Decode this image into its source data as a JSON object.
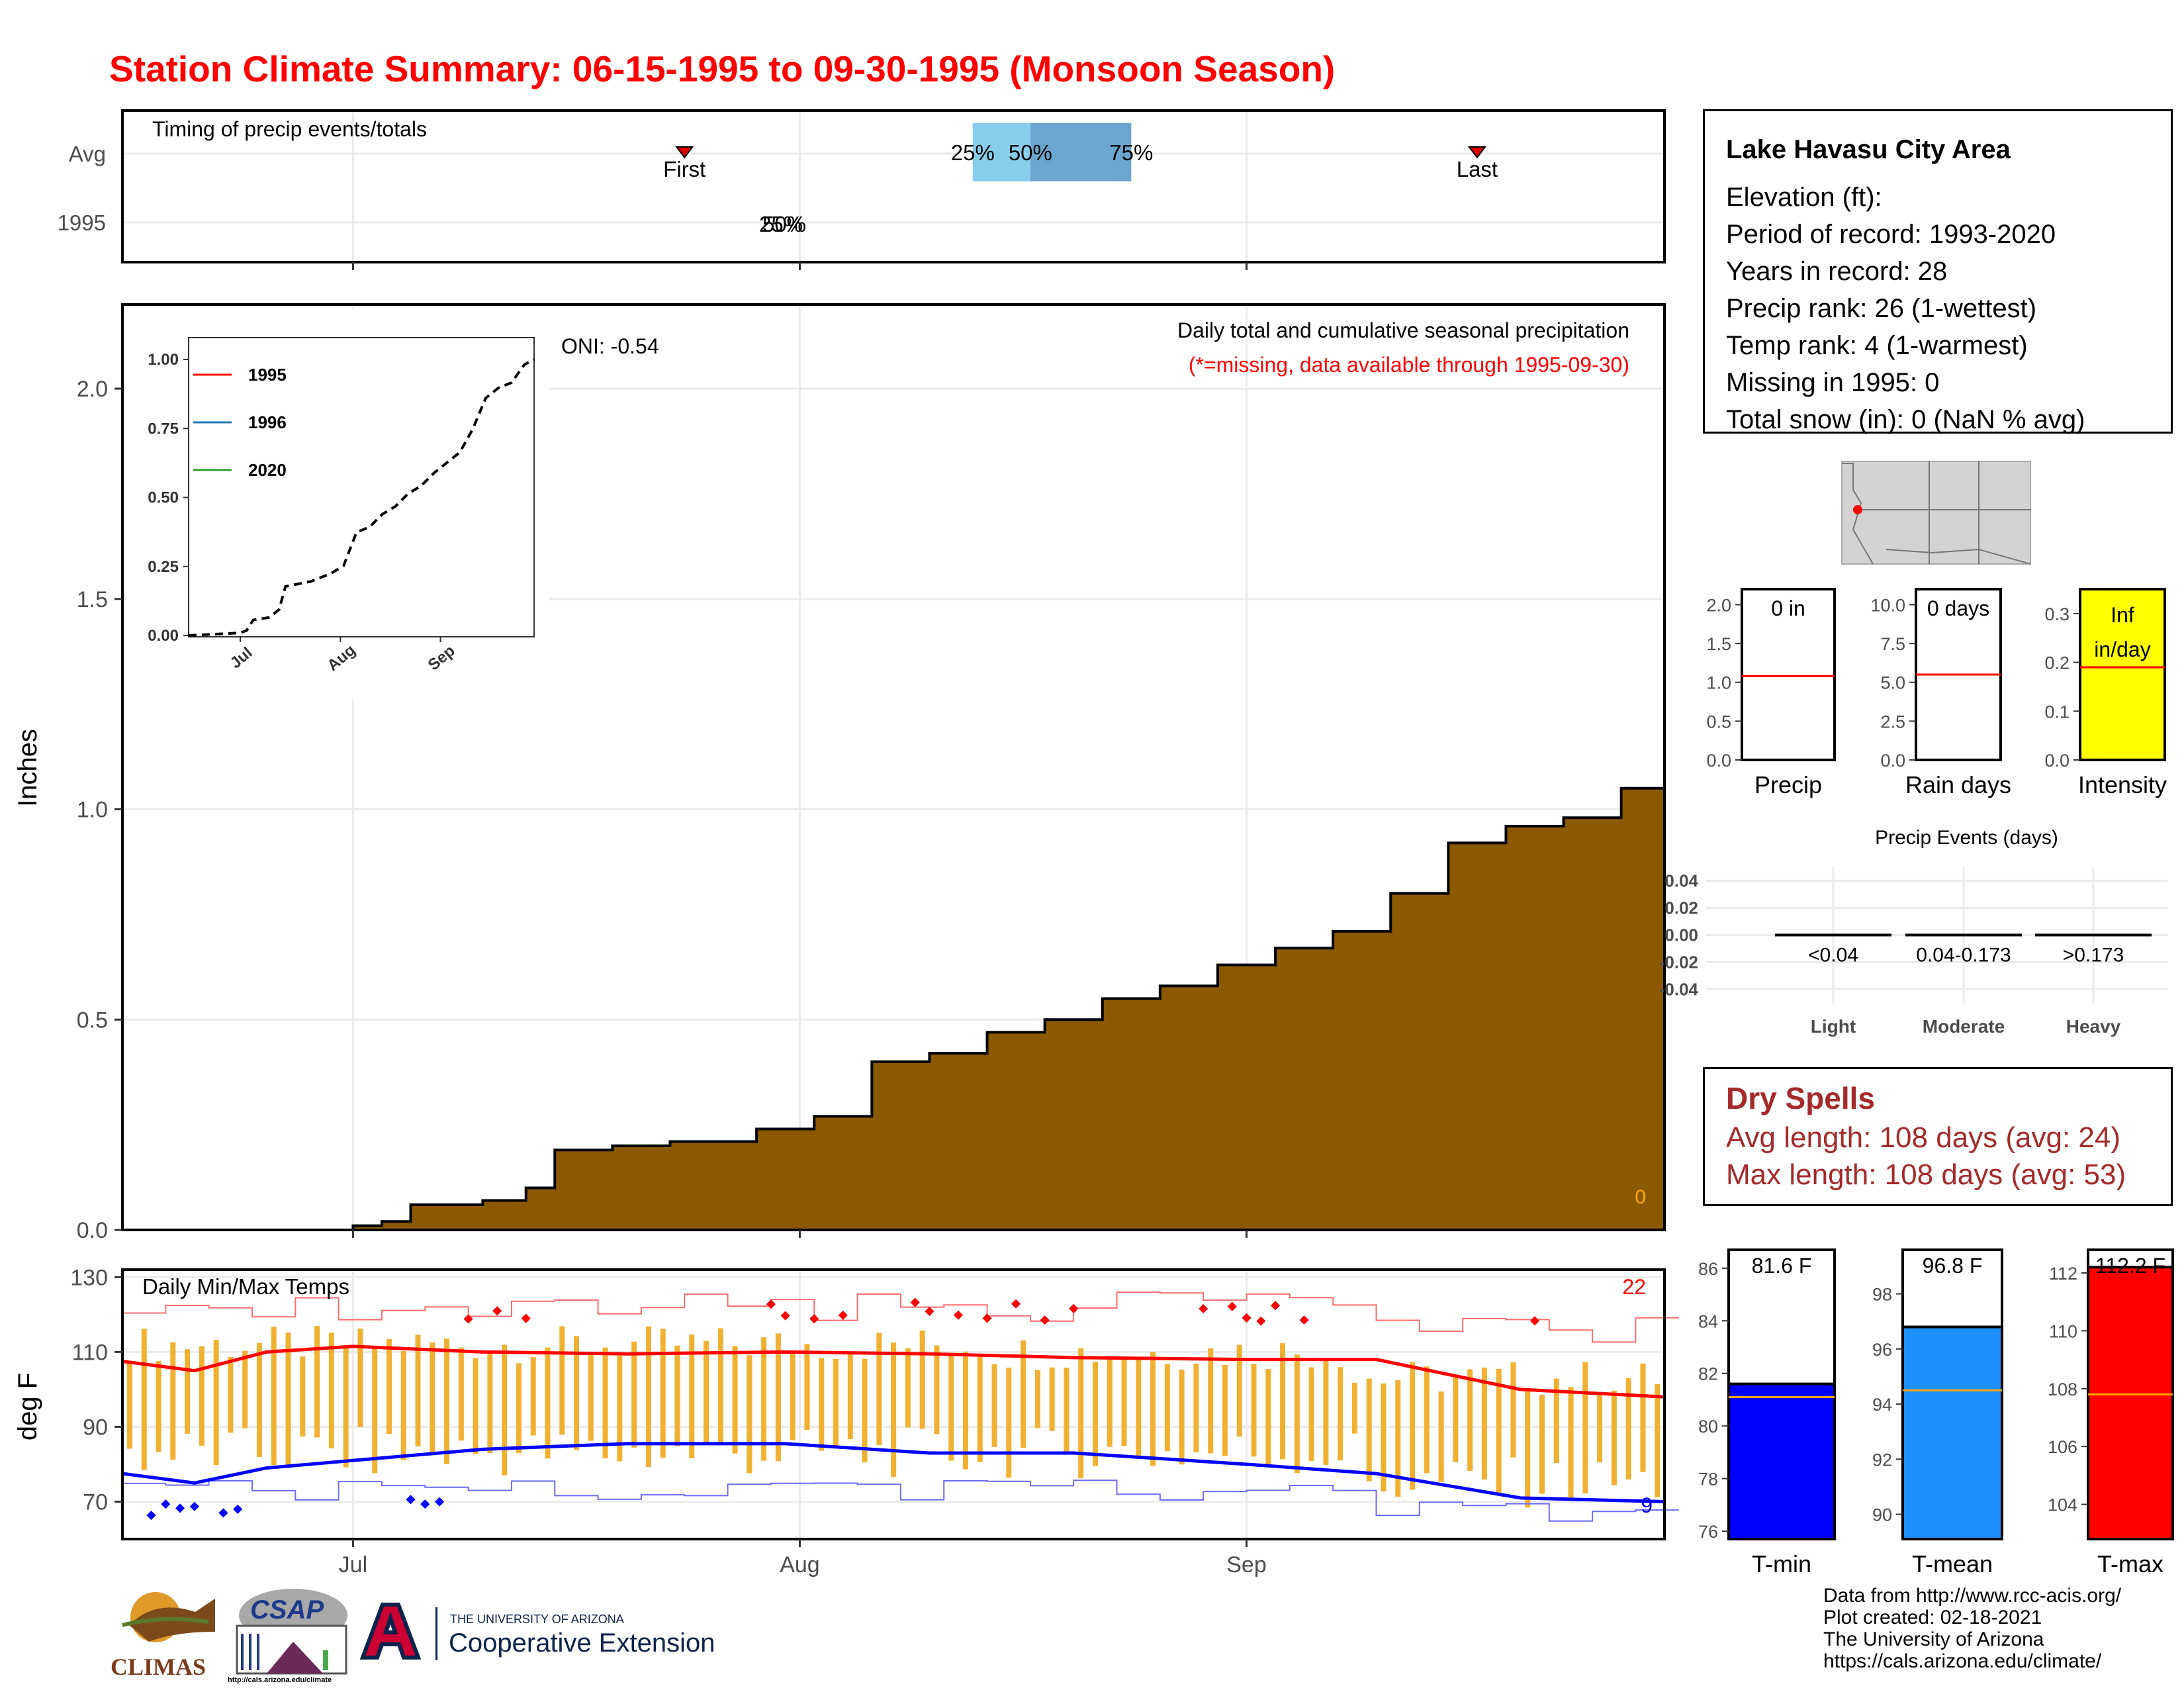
{
  "title": "Station Climate Summary: 06-15-1995 to 09-30-1995 (Monsoon Season)",
  "colors": {
    "title": "#ff0000",
    "precip_fill": "#8b5a00",
    "temp_bar": "#f0b132",
    "avg_max": "#ff0000",
    "avg_min": "#0000ff",
    "dry_spell": "#a52a2a",
    "q1": "#87ceeb",
    "q2": "#6aa6cd"
  },
  "timing": {
    "title": "Timing of precip events/totals",
    "row_labels": [
      "Avg",
      "1995"
    ],
    "first_label": "First",
    "last_label": "Last",
    "quartile_labels": [
      "25%",
      "50%",
      "75%"
    ],
    "year_overlap_labels": [
      "50%",
      "25%"
    ],
    "first_date": "1995-07-24",
    "last_date": "1995-09-17",
    "q25_date": "1995-08-13",
    "q50_date": "1995-08-17",
    "q75_date": "1995-08-24"
  },
  "precip_panel": {
    "ylabel": "Inches",
    "annot_title": "Daily total and cumulative seasonal precipitation",
    "annot_missing": "(*=missing, data available through 1995-09-30)",
    "oni": "ONI: -0.54",
    "corner_count": "0",
    "yticks": [
      "0.0",
      "0.5",
      "1.0",
      "1.5",
      "2.0"
    ]
  },
  "inset": {
    "legend": [
      {
        "name": "1995",
        "color": "#ff0000"
      },
      {
        "name": "1996",
        "color": "#1f77b4"
      },
      {
        "name": "2020",
        "color": "#2ca02c"
      }
    ],
    "yticks": [
      "0.00",
      "0.25",
      "0.50",
      "0.75",
      "1.00"
    ],
    "xticks": [
      "Jul",
      "Aug",
      "Sep"
    ]
  },
  "temp_panel": {
    "title": "Daily Min/Max Temps",
    "ylabel": "deg F",
    "max_count": "22",
    "min_count": "9",
    "yticks": [
      "70",
      "90",
      "110",
      "130"
    ],
    "xticks": [
      "Jul",
      "Aug",
      "Sep"
    ]
  },
  "chart_data": [
    {
      "type": "area",
      "title": "Daily total and cumulative seasonal precipitation",
      "ylabel": "Inches",
      "xlim": [
        "1995-06-15",
        "1995-09-30"
      ],
      "ylim": [
        0,
        2.2
      ],
      "x": [
        "1995-06-15",
        "1995-07-01",
        "1995-07-03",
        "1995-07-05",
        "1995-07-10",
        "1995-07-13",
        "1995-07-15",
        "1995-07-19",
        "1995-07-23",
        "1995-07-29",
        "1995-08-02",
        "1995-08-06",
        "1995-08-10",
        "1995-08-14",
        "1995-08-18",
        "1995-08-22",
        "1995-08-26",
        "1995-08-30",
        "1995-09-03",
        "1995-09-07",
        "1995-09-11",
        "1995-09-15",
        "1995-09-19",
        "1995-09-23",
        "1995-09-27",
        "1995-09-30"
      ],
      "y": [
        0.0,
        0.01,
        0.02,
        0.06,
        0.07,
        0.1,
        0.19,
        0.2,
        0.21,
        0.24,
        0.27,
        0.4,
        0.42,
        0.47,
        0.5,
        0.55,
        0.58,
        0.63,
        0.67,
        0.71,
        0.8,
        0.92,
        0.96,
        0.98,
        1.05,
        1.07
      ]
    },
    {
      "type": "line",
      "title": "Daily Min/Max Temps",
      "ylabel": "deg F",
      "ylim": [
        60,
        132
      ],
      "series": [
        {
          "name": "avg max",
          "x": [
            "1995-06-15",
            "1995-06-20",
            "1995-06-25",
            "1995-07-01",
            "1995-07-10",
            "1995-07-20",
            "1995-07-31",
            "1995-08-10",
            "1995-08-20",
            "1995-09-01",
            "1995-09-10",
            "1995-09-20",
            "1995-09-30"
          ],
          "values": [
            107.5,
            105,
            110,
            111.5,
            110,
            109.5,
            110,
            109.5,
            108.5,
            108,
            108,
            100,
            98
          ]
        },
        {
          "name": "avg min",
          "x": [
            "1995-06-15",
            "1995-06-20",
            "1995-06-25",
            "1995-07-01",
            "1995-07-10",
            "1995-07-20",
            "1995-07-31",
            "1995-08-10",
            "1995-08-20",
            "1995-09-01",
            "1995-09-10",
            "1995-09-20",
            "1995-09-30"
          ],
          "values": [
            77.5,
            75,
            79,
            81,
            84,
            85.5,
            85.5,
            83,
            83,
            80,
            77.5,
            71,
            70
          ]
        }
      ]
    },
    {
      "type": "bar",
      "title": "Precip",
      "categories": [
        "Precip"
      ],
      "values": [
        0
      ],
      "bar_label": "0 in",
      "avg_line": 1.08,
      "ylim": [
        0,
        2.2
      ],
      "yticks": [
        "0.0",
        "0.5",
        "1.0",
        "1.5",
        "2.0"
      ]
    },
    {
      "type": "bar",
      "title": "Rain days",
      "categories": [
        "Rain days"
      ],
      "values": [
        0
      ],
      "bar_label": "0 days",
      "avg_line": 5.5,
      "ylim": [
        0,
        11
      ],
      "yticks": [
        "0.0",
        "2.5",
        "5.0",
        "7.5",
        "10.0"
      ]
    },
    {
      "type": "bar",
      "title": "Intensity",
      "categories": [
        "Intensity"
      ],
      "values": [
        "Inf"
      ],
      "bar_label_lines": [
        "Inf",
        "in/day"
      ],
      "avg_line": 0.19,
      "ylim": [
        0,
        0.35
      ],
      "yticks": [
        "0.0",
        "0.1",
        "0.2",
        "0.3"
      ]
    },
    {
      "type": "bar",
      "title": "Precip Events (days)",
      "categories": [
        "Light",
        "Moderate",
        "Heavy"
      ],
      "values": [
        0,
        0,
        0
      ],
      "range_labels": [
        "<0.04",
        "0.04-0.173",
        ">0.173"
      ],
      "ylim": [
        -0.05,
        0.05
      ],
      "yticks": [
        "0.04",
        "0.02",
        "0.00",
        "-0.02",
        "-0.04"
      ]
    },
    {
      "type": "bar",
      "title": "T-min",
      "categories": [
        "T-min"
      ],
      "values": [
        81.6
      ],
      "bar_label": "81.6 F",
      "avg_line": 81.1,
      "ylim": [
        75.7,
        86.7
      ],
      "yticks": [
        "76",
        "78",
        "80",
        "82",
        "84",
        "86"
      ]
    },
    {
      "type": "bar",
      "title": "T-mean",
      "categories": [
        "T-mean"
      ],
      "values": [
        96.8
      ],
      "bar_label": "96.8 F",
      "avg_line": 94.5,
      "ylim": [
        89.1,
        99.6
      ],
      "yticks": [
        "90",
        "92",
        "94",
        "96",
        "98"
      ]
    },
    {
      "type": "bar",
      "title": "T-max",
      "categories": [
        "T-max"
      ],
      "values": [
        112.2
      ],
      "bar_label": "112.2 F",
      "avg_line": 107.8,
      "ylim": [
        102.8,
        112.8
      ],
      "yticks": [
        "104",
        "106",
        "108",
        "110",
        "112"
      ]
    }
  ],
  "station": {
    "name": "Lake Havasu City Area",
    "lines": [
      "Elevation (ft):",
      "Period of record: 1993-2020",
      "Years in record: 28",
      "Precip rank: 26 (1-wettest)",
      "Temp rank: 4 (1-warmest)",
      "Missing in 1995: 0",
      "Total snow (in): 0 (NaN % avg)"
    ]
  },
  "dry_spells": {
    "title": "Dry Spells",
    "avg": "Avg length: 108 days (avg: 24)",
    "max": "Max length: 108 days (avg: 53)"
  },
  "credits": [
    "Data from http://www.rcc-acis.org/",
    "Plot created: 02-18-2021",
    "The University of Arizona",
    "https://cals.arizona.edu/climate/"
  ],
  "logos": {
    "climas": "CLIMAS",
    "csap": "CSAP",
    "csap_url": "http://cals.arizona.edu/climate",
    "ua_top": "THE UNIVERSITY OF ARIZONA",
    "ua_bottom": "Cooperative Extension"
  }
}
